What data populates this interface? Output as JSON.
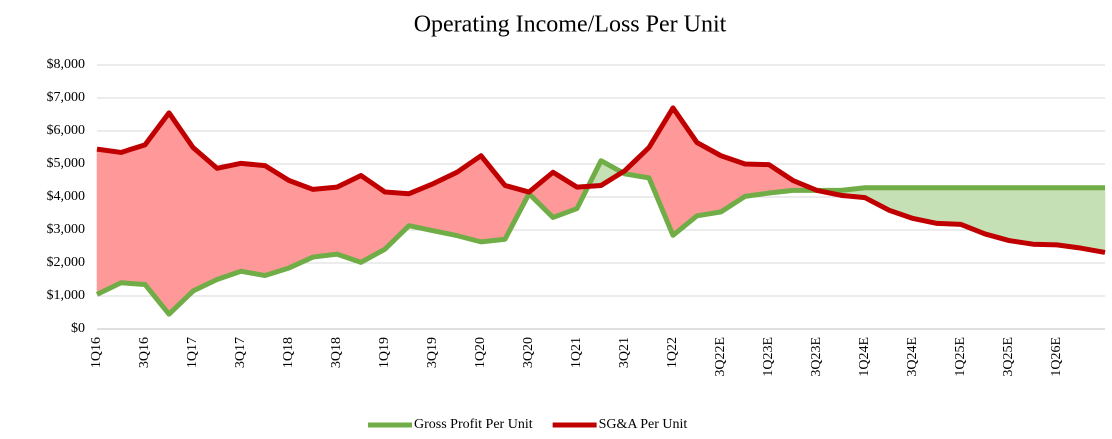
{
  "chart_data": {
    "type": "line",
    "title": "Operating Income/Loss Per Unit",
    "categories": [
      "1Q16",
      null,
      "3Q16",
      null,
      "1Q17",
      null,
      "3Q17",
      null,
      "1Q18",
      null,
      "3Q18",
      null,
      "1Q19",
      null,
      "3Q19",
      null,
      "1Q20",
      null,
      "3Q20",
      null,
      "1Q21",
      null,
      "3Q21",
      null,
      "1Q22",
      null,
      "3Q22E",
      null,
      "1Q23E",
      null,
      "3Q23E",
      null,
      "1Q24E",
      null,
      "3Q24E",
      null,
      "1Q25E",
      null,
      "3Q25E",
      null,
      "1Q26E",
      null,
      null
    ],
    "series": [
      {
        "name": "Gross Profit Per Unit",
        "color": "#70ad47",
        "fill": "#c5e0b4",
        "values": [
          1050,
          1400,
          1350,
          450,
          1150,
          1500,
          1750,
          1620,
          1850,
          2180,
          2270,
          2020,
          2420,
          3130,
          2980,
          2830,
          2640,
          2720,
          4100,
          3380,
          3650,
          5100,
          4700,
          4580,
          2840,
          3430,
          3550,
          4020,
          4120,
          4200,
          4200,
          4200,
          4280,
          4280,
          4280,
          4280,
          4280,
          4280,
          4280,
          4280,
          4280,
          4280,
          4280
        ]
      },
      {
        "name": "SG&A Per Unit",
        "color": "#c00000",
        "fill": "#ff9999",
        "values": [
          5450,
          5350,
          5580,
          6550,
          5500,
          4870,
          5020,
          4950,
          4500,
          4230,
          4300,
          4650,
          4150,
          4100,
          4400,
          4750,
          5250,
          4350,
          4150,
          4750,
          4300,
          4350,
          4800,
          5500,
          6700,
          5650,
          5250,
          5000,
          4980,
          4500,
          4200,
          4050,
          3980,
          3600,
          3350,
          3200,
          3170,
          2880,
          2680,
          2570,
          2550,
          2450,
          2320
        ]
      }
    ],
    "ylim": [
      0,
      8000
    ],
    "yticks": [
      {
        "value": 0,
        "label": "$0"
      },
      {
        "value": 1000,
        "label": "$1,000"
      },
      {
        "value": 2000,
        "label": "$2,000"
      },
      {
        "value": 3000,
        "label": "$3,000"
      },
      {
        "value": 4000,
        "label": "$4,000"
      },
      {
        "value": 5000,
        "label": "$5,000"
      },
      {
        "value": 6000,
        "label": "$6,000"
      },
      {
        "value": 7000,
        "label": "$7,000"
      },
      {
        "value": 8000,
        "label": "$8,000"
      }
    ],
    "grid": true,
    "legend": "bottom"
  }
}
